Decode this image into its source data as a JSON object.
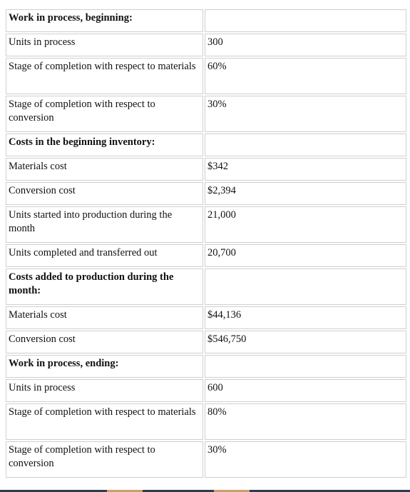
{
  "rows": [
    {
      "label": "Work in process, beginning:",
      "value": "",
      "bold": true
    },
    {
      "label": "Units in process",
      "value": "300",
      "bold": false
    },
    {
      "label": "Stage of completion with respect to materials",
      "value": "60%",
      "bold": false
    },
    {
      "label": "Stage of completion with respect to conversion",
      "value": "30%",
      "bold": false
    },
    {
      "label": "Costs in the beginning inventory:",
      "value": "",
      "bold": true
    },
    {
      "label": "Materials cost",
      "value": "$342",
      "bold": false
    },
    {
      "label": "Conversion cost",
      "value": "$2,394",
      "bold": false
    },
    {
      "label": "Units started into production during the month",
      "value": "21,000",
      "bold": false
    },
    {
      "label": "Units completed and transferred out",
      "value": "20,700",
      "bold": false
    },
    {
      "label": "Costs added to production during the month:",
      "value": "",
      "bold": true
    },
    {
      "label": "Materials cost",
      "value": "$44,136",
      "bold": false
    },
    {
      "label": "Conversion cost",
      "value": "$546,750",
      "bold": false
    },
    {
      "label": "Work in process, ending:",
      "value": "",
      "bold": true
    },
    {
      "label": "Units in process",
      "value": "600",
      "bold": false
    },
    {
      "label": "Stage of completion with respect to materials",
      "value": "80%",
      "bold": false
    },
    {
      "label": "Stage of completion with respect to conversion",
      "value": "30%",
      "bold": false
    }
  ]
}
